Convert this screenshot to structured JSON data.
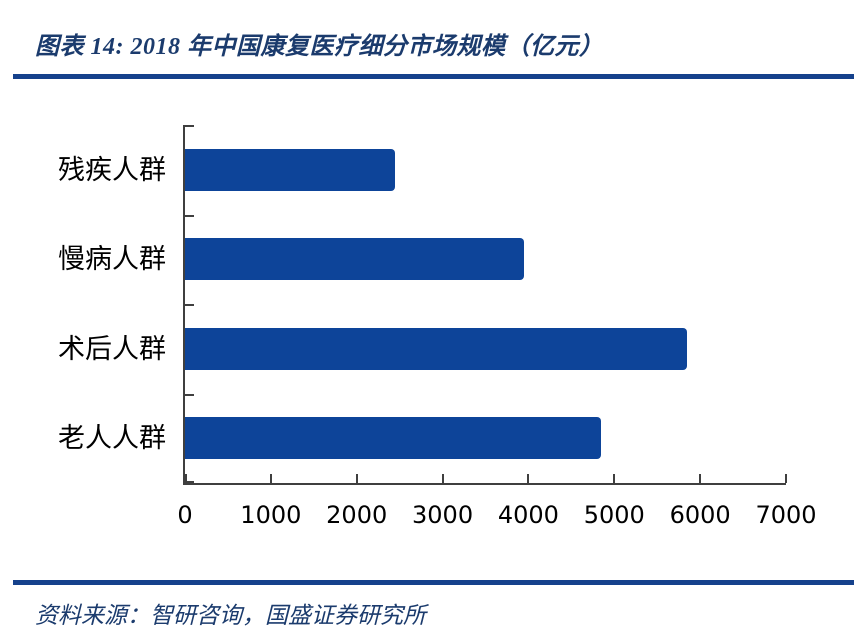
{
  "header": {
    "title": "图表 14: 2018 年中国康复医疗细分市场规模（亿元）"
  },
  "footer": {
    "source": "资料来源：智研咨询，国盛证券研究所"
  },
  "colors": {
    "bar": "#0D4499",
    "divider_rule": "#15418C",
    "heading_text": "#1B3B6D",
    "axis": "#3F3F3F",
    "tick_label": "#000000"
  },
  "chart_data": {
    "type": "bar",
    "orientation": "horizontal",
    "title": "2018 年中国康复医疗细分市场规模（亿元）",
    "categories": [
      "残疾人群",
      "慢病人群",
      "术后人群",
      "老人人群"
    ],
    "values": [
      2450,
      3950,
      5850,
      4850
    ],
    "xlabel": "",
    "ylabel": "",
    "xlim": [
      0,
      7000
    ],
    "xticks": [
      0,
      1000,
      2000,
      3000,
      4000,
      5000,
      6000,
      7000
    ],
    "xtick_labels": [
      "0",
      "1000",
      "2000",
      "3000",
      "4000",
      "5000",
      "6000",
      "7000"
    ],
    "bar_color": "#0D4499",
    "grid": false,
    "legend": false
  }
}
